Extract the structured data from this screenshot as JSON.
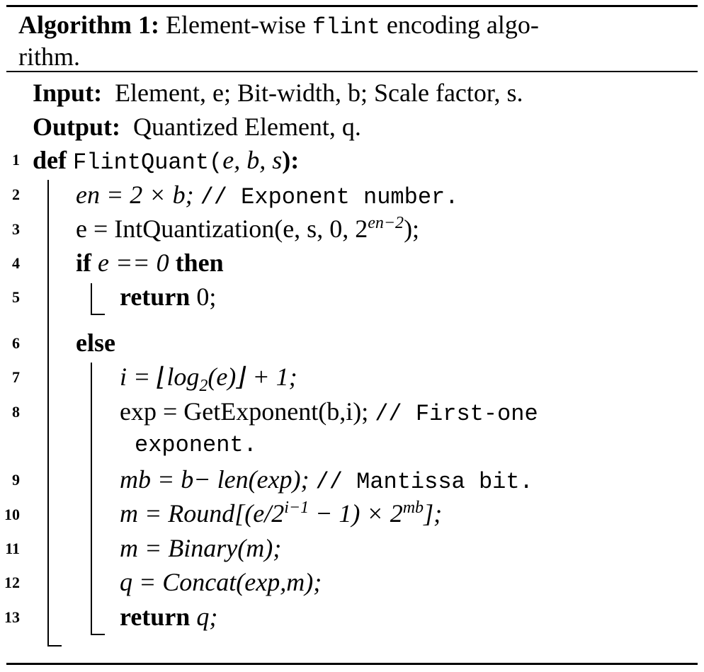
{
  "algorithm": {
    "label": "Algorithm 1:",
    "title_pre": "Element-wise",
    "title_code": "flint",
    "title_post": "encoding algo-",
    "title_line2": "rithm."
  },
  "io": {
    "input_label": "Input:",
    "input_text": "Element, e; Bit-width, b; Scale factor, s.",
    "output_label": "Output:",
    "output_text": "Quantized Element, q."
  },
  "lines": [
    {
      "n": "1",
      "kw": "def",
      "fn": "FlintQuant",
      "args": "e, b, s",
      "end": "):"
    },
    {
      "n": "2",
      "math": "en = 2 × b;",
      "comment": "// Exponent number."
    },
    {
      "n": "3",
      "math_pre": "e = IntQuantization(e, s, 0, 2",
      "sup": "en−2",
      "math_post": ");"
    },
    {
      "n": "4",
      "kw": "if",
      "cond": "e == 0",
      "kw2": "then"
    },
    {
      "n": "5",
      "kw": "return",
      "val": "0;"
    },
    {
      "n": "6",
      "kw": "else"
    },
    {
      "n": "7",
      "math_pre": "i = ⌊log",
      "sub": "2",
      "math_post": "(e)⌋ + 1;"
    },
    {
      "n": "8",
      "math": "exp = GetExponent(b,i);",
      "comment": "// First-one",
      "comment2": "exponent."
    },
    {
      "n": "9",
      "math": "mb = b− len(exp);",
      "comment": "// Mantissa bit."
    },
    {
      "n": "10",
      "math_pre": "m = Round[(e/2",
      "sup": "i−1",
      "math_mid": " − 1) × 2",
      "sup2": "mb",
      "math_post": "];"
    },
    {
      "n": "11",
      "math": "m = Binary(m);"
    },
    {
      "n": "12",
      "math": "q = Concat(exp,m);"
    },
    {
      "n": "13",
      "kw": "return",
      "val": "q;"
    }
  ]
}
